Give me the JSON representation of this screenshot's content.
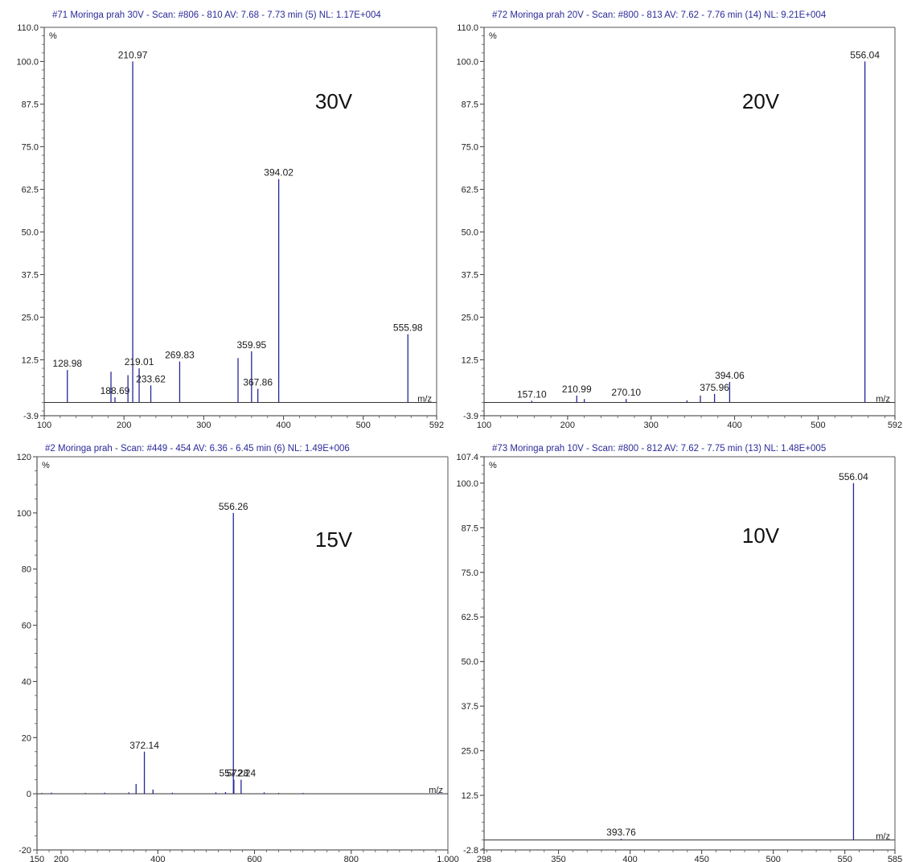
{
  "colors": {
    "peak": "#26269a",
    "title": "#2b2b9a",
    "axis": "#333333"
  },
  "chart_data": [
    {
      "type": "bar",
      "title": "#71 Moringa prah 30V - Scan: #806 - 810  AV: 7.68 - 7.73 min (5) NL: 1.17E+004",
      "voltage_label": "30V",
      "ylabel": "%",
      "xlabel": "m/z",
      "xlim": [
        100,
        592
      ],
      "ylim": [
        -3.9,
        110.0
      ],
      "y_ticks": [
        "-3.9",
        "12.5",
        "25.0",
        "37.5",
        "50.0",
        "62.5",
        "75.0",
        "87.5",
        "100.0",
        "110.0"
      ],
      "x_ticks": [
        "100",
        "200",
        "300",
        "400",
        "500",
        "592"
      ],
      "peaks": [
        {
          "x": 128.98,
          "y": 9.5,
          "label": "128.98"
        },
        {
          "x": 183.69,
          "y": 9.0,
          "label": ""
        },
        {
          "x": 188.69,
          "y": 1.5,
          "label": "188.69"
        },
        {
          "x": 205.0,
          "y": 8.0,
          "label": ""
        },
        {
          "x": 210.97,
          "y": 100.0,
          "label": "210.97"
        },
        {
          "x": 219.01,
          "y": 10.0,
          "label": "219.01"
        },
        {
          "x": 233.62,
          "y": 5.0,
          "label": "233.62"
        },
        {
          "x": 269.83,
          "y": 12.0,
          "label": "269.83"
        },
        {
          "x": 343.0,
          "y": 13.0,
          "label": ""
        },
        {
          "x": 359.95,
          "y": 15.0,
          "label": "359.95"
        },
        {
          "x": 367.86,
          "y": 4.0,
          "label": "367.86"
        },
        {
          "x": 394.02,
          "y": 65.5,
          "label": "394.02"
        },
        {
          "x": 555.98,
          "y": 20.0,
          "label": "555.98"
        }
      ]
    },
    {
      "type": "bar",
      "title": "#72 Moringa prah 20V - Scan: #800 - 813  AV: 7.62 - 7.76 min (14) NL: 9.21E+004",
      "voltage_label": "20V",
      "ylabel": "%",
      "xlabel": "m/z",
      "xlim": [
        100,
        592
      ],
      "ylim": [
        -3.9,
        110.0
      ],
      "y_ticks": [
        "-3.9",
        "12.5",
        "25.0",
        "37.5",
        "50.0",
        "62.5",
        "75.0",
        "87.5",
        "100.0",
        "110.0"
      ],
      "x_ticks": [
        "100",
        "200",
        "300",
        "400",
        "500",
        "592"
      ],
      "peaks": [
        {
          "x": 157.1,
          "y": 0.5,
          "label": "157.10"
        },
        {
          "x": 210.99,
          "y": 2.0,
          "label": "210.99"
        },
        {
          "x": 220.0,
          "y": 1.0,
          "label": ""
        },
        {
          "x": 270.1,
          "y": 1.0,
          "label": "270.10"
        },
        {
          "x": 343.0,
          "y": 0.6,
          "label": ""
        },
        {
          "x": 359.0,
          "y": 2.0,
          "label": ""
        },
        {
          "x": 375.96,
          "y": 2.5,
          "label": "375.96"
        },
        {
          "x": 394.06,
          "y": 6.0,
          "label": "394.06"
        },
        {
          "x": 556.04,
          "y": 100.0,
          "label": "556.04"
        }
      ]
    },
    {
      "type": "bar",
      "title": "#2 Moringa prah - Scan: #449 - 454  AV: 6.36 - 6.45 min (6) NL: 1.49E+006",
      "voltage_label": "15V",
      "ylabel": "%",
      "xlabel": "m/z",
      "xlim": [
        150,
        1000
      ],
      "ylim": [
        -20,
        120
      ],
      "y_ticks": [
        "-20",
        "0",
        "20",
        "40",
        "60",
        "80",
        "100",
        "120"
      ],
      "x_ticks": [
        "150",
        "200",
        "400",
        "600",
        "800",
        "1.000"
      ],
      "peaks": [
        {
          "x": 160.0,
          "y": 0.3,
          "label": ""
        },
        {
          "x": 180.0,
          "y": 0.4,
          "label": ""
        },
        {
          "x": 250.0,
          "y": 0.3,
          "label": ""
        },
        {
          "x": 290.0,
          "y": 0.4,
          "label": ""
        },
        {
          "x": 340.0,
          "y": 0.5,
          "label": ""
        },
        {
          "x": 355.0,
          "y": 3.5,
          "label": ""
        },
        {
          "x": 372.14,
          "y": 15.0,
          "label": "372.14"
        },
        {
          "x": 390.0,
          "y": 1.5,
          "label": ""
        },
        {
          "x": 430.0,
          "y": 0.4,
          "label": ""
        },
        {
          "x": 520.0,
          "y": 0.5,
          "label": ""
        },
        {
          "x": 540.0,
          "y": 0.6,
          "label": ""
        },
        {
          "x": 556.26,
          "y": 100.0,
          "label": "556.26"
        },
        {
          "x": 557.28,
          "y": 5.0,
          "label": "557.28"
        },
        {
          "x": 572.24,
          "y": 5.0,
          "label": "572.24"
        },
        {
          "x": 620.0,
          "y": 0.5,
          "label": ""
        },
        {
          "x": 650.0,
          "y": 0.3,
          "label": ""
        },
        {
          "x": 700.0,
          "y": 0.3,
          "label": ""
        },
        {
          "x": 980.0,
          "y": 0.4,
          "label": ""
        }
      ]
    },
    {
      "type": "bar",
      "title": "#73 Moringa prah 10V - Scan: #800 - 812  AV: 7.62 - 7.75 min (13) NL: 1.48E+005",
      "voltage_label": "10V",
      "ylabel": "%",
      "xlabel": "m/z",
      "xlim": [
        298,
        585
      ],
      "ylim": [
        -2.8,
        107.4
      ],
      "y_ticks": [
        "-2.8",
        "12.5",
        "25.0",
        "37.5",
        "50.0",
        "62.5",
        "75.0",
        "87.5",
        "100.0",
        "107.4"
      ],
      "x_ticks": [
        "298",
        "350",
        "400",
        "450",
        "500",
        "550",
        "585"
      ],
      "peaks": [
        {
          "x": 393.76,
          "y": 0.3,
          "label": "393.76"
        },
        {
          "x": 556.04,
          "y": 100.0,
          "label": "556.04"
        }
      ]
    }
  ]
}
